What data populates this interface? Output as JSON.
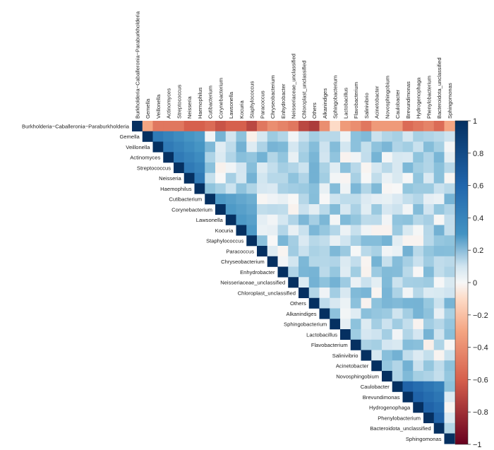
{
  "chart_data": {
    "type": "heatmap",
    "layout": "upper-triangle",
    "labels": [
      "Burkholderia−Caballeronia−Paraburkholderia",
      "Gemella",
      "Veillonella",
      "Actinomyces",
      "Streptococcus",
      "Neisseria",
      "Haemophilus",
      "Cutibacterium",
      "Corynebacterium",
      "Lawsonella",
      "Kocuria",
      "Staphylococcus",
      "Paracoccus",
      "Chryseobacterium",
      "Enhydrobacter",
      "Neisseriaceae_unclassified",
      "Chloroplast_unclassified",
      "Others",
      "Alkanindiges",
      "Sphingobacterium",
      "Lactobacillus",
      "Flavobacterium",
      "Salinivibrio",
      "Acinetobacter",
      "Novosphingobium",
      "Caulobacter",
      "Brevundimonas",
      "Hydrogenophaga",
      "Phenylobacterium",
      "Bacteroidota_unclassified",
      "Sphingomonas"
    ],
    "first_row": [
      1,
      -0.3,
      -0.5,
      -0.5,
      -0.5,
      -0.6,
      -0.6,
      -0.55,
      -0.65,
      -0.6,
      -0.6,
      -0.7,
      -0.5,
      -0.4,
      -0.45,
      -0.5,
      -0.7,
      -0.75,
      -0.4,
      -0.1,
      -0.35,
      -0.4,
      -0.5,
      -0.35,
      -0.35,
      -0.35,
      -0.55,
      -0.5,
      -0.45,
      -0.55,
      -0.3
    ],
    "blocks": [
      {
        "rows": [
          1,
          6
        ],
        "value": 0.75
      },
      {
        "rows": [
          7,
          11
        ],
        "value": 0.6
      },
      {
        "rows": [
          25,
          29
        ],
        "value": 0.85
      }
    ],
    "colorbar": {
      "ticks": [
        1,
        0.8,
        0.6,
        0.4,
        0.2,
        0,
        -0.2,
        -0.4,
        -0.6,
        -0.8,
        -1
      ],
      "min": -1,
      "max": 1
    },
    "colors": {
      "neg_strong": "#67001f",
      "neg_mid": "#d6604d",
      "neg_light": "#fddbc7",
      "neutral": "#f7f7f7",
      "pos_light": "#d1e5f0",
      "pos_mid": "#4393c3",
      "pos_strong": "#053061"
    },
    "title": "",
    "xlabel": "",
    "ylabel": ""
  }
}
